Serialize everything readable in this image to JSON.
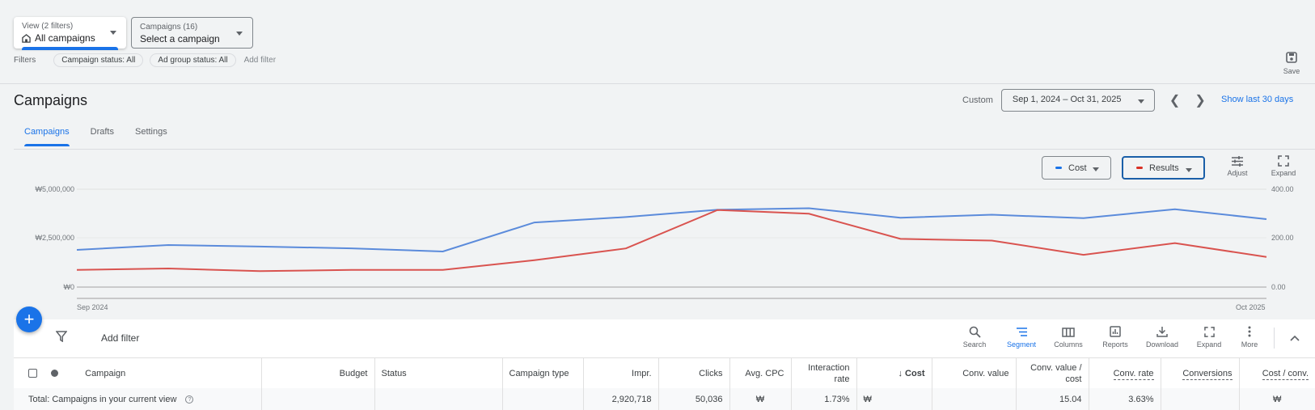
{
  "header": {
    "view_dropdown": {
      "label": "View (2 filters)",
      "value": "All campaigns"
    },
    "campaign_dropdown": {
      "label": "Campaigns (16)",
      "value": "Select a campaign"
    },
    "filters": {
      "label": "Filters",
      "chips": [
        "Campaign status: All",
        "Ad group status: All"
      ],
      "add_filter": "Add filter"
    },
    "save_label": "Save"
  },
  "page": {
    "title": "Campaigns",
    "date_range_label": "Custom",
    "date_range": "Sep 1, 2024 – Oct 31, 2025",
    "show_last_30": "Show last 30 days",
    "tabs": [
      {
        "label": "Campaigns",
        "active": true
      },
      {
        "label": "Drafts",
        "active": false
      },
      {
        "label": "Settings",
        "active": false
      }
    ]
  },
  "chart_controls": {
    "metric1": {
      "label": "Cost",
      "color": "#1a73e8"
    },
    "metric2": {
      "label": "Results",
      "color": "#d93025"
    },
    "adjust_label": "Adjust",
    "expand_label": "Expand"
  },
  "chart_data": {
    "type": "line",
    "title": "",
    "x": [
      "Sep 2024",
      "Oct 2024",
      "Nov 2024",
      "Dec 2024",
      "Jan 2025",
      "Feb 2025",
      "Mar 2025",
      "Apr 2025",
      "May 2025",
      "Jun 2025",
      "Jul 2025",
      "Aug 2025",
      "Sep 2025",
      "Oct 2025"
    ],
    "x_tick_labels": [
      "Sep 2024",
      "Oct 2025"
    ],
    "series": [
      {
        "name": "Cost",
        "axis": "left",
        "color": "#5b8bdb",
        "values": [
          1900000,
          2150000,
          2070000,
          1980000,
          1820000,
          3300000,
          3580000,
          3950000,
          4030000,
          3540000,
          3700000,
          3520000,
          3980000,
          3470000
        ]
      },
      {
        "name": "Results",
        "axis": "right",
        "color": "#d9534f",
        "values": [
          70,
          76,
          65,
          70,
          70,
          110,
          158,
          315,
          300,
          197,
          190,
          132,
          180,
          123
        ]
      }
    ],
    "y_left": {
      "ticks": [
        "₩5,000,000",
        "₩2,500,000",
        "₩0"
      ],
      "range": [
        0,
        5000000
      ]
    },
    "y_right": {
      "ticks": [
        "400.00",
        "200.00",
        "0.00"
      ],
      "range": [
        0,
        400
      ]
    },
    "grid": true,
    "legend": "none"
  },
  "fab": {
    "icon": "plus-icon"
  },
  "table_toolbar": {
    "add_filter": "Add filter",
    "items": [
      {
        "label": "Search",
        "icon": "search-icon"
      },
      {
        "label": "Segment",
        "icon": "segment-icon",
        "active": true
      },
      {
        "label": "Columns",
        "icon": "columns-icon"
      },
      {
        "label": "Reports",
        "icon": "reports-icon"
      },
      {
        "label": "Download",
        "icon": "download-icon"
      },
      {
        "label": "Expand",
        "icon": "expand-icon"
      },
      {
        "label": "More",
        "icon": "more-icon"
      }
    ]
  },
  "table": {
    "columns": [
      "Campaign",
      "Budget",
      "Status",
      "Campaign type",
      "Impr.",
      "Clicks",
      "Avg. CPC",
      "Interaction rate",
      "Cost",
      "Conv. value",
      "Conv. value / cost",
      "Conv. rate",
      "Conversions",
      "Cost / conv."
    ],
    "sort_column": "Cost",
    "total_row": {
      "label": "Total: Campaigns in your current view",
      "budget": "",
      "status": "",
      "campaign_type": "",
      "impr": "2,920,718",
      "clicks": "50,036",
      "avg_cpc": "₩",
      "interaction_rate": "1.73%",
      "cost": "₩",
      "conv_value": "",
      "conv_value_cost": "15.04",
      "conv_rate": "3.63%",
      "conversions": "",
      "cost_per_conv": "₩"
    }
  }
}
